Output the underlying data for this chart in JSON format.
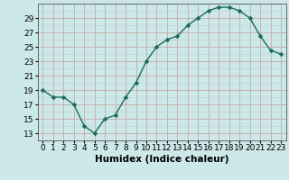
{
  "x": [
    0,
    1,
    2,
    3,
    4,
    5,
    6,
    7,
    8,
    9,
    10,
    11,
    12,
    13,
    14,
    15,
    16,
    17,
    18,
    19,
    20,
    21,
    22,
    23
  ],
  "y": [
    19,
    18,
    18,
    17,
    14,
    13,
    15,
    15.5,
    18,
    20,
    23,
    25,
    26,
    26.5,
    28,
    29,
    30,
    30.5,
    30.5,
    30,
    29,
    26.5,
    24.5,
    24
  ],
  "line_color": "#1a6b5a",
  "marker": "D",
  "marker_size": 2.5,
  "bg_color": "#cce8e8",
  "xlabel": "Humidex (Indice chaleur)",
  "xlim": [
    -0.5,
    23.5
  ],
  "ylim": [
    12,
    31
  ],
  "yticks": [
    13,
    15,
    17,
    19,
    21,
    23,
    25,
    27,
    29
  ],
  "xticks": [
    0,
    1,
    2,
    3,
    4,
    5,
    6,
    7,
    8,
    9,
    10,
    11,
    12,
    13,
    14,
    15,
    16,
    17,
    18,
    19,
    20,
    21,
    22,
    23
  ],
  "xtick_labels": [
    "0",
    "1",
    "2",
    "3",
    "4",
    "5",
    "6",
    "7",
    "8",
    "9",
    "10",
    "11",
    "12",
    "13",
    "14",
    "15",
    "16",
    "17",
    "18",
    "19",
    "20",
    "21",
    "22",
    "23"
  ],
  "grid_major_color": "#c8a8a8",
  "grid_minor_color": "#b8d8d8",
  "font_size_ticks": 6.5,
  "font_size_xlabel": 7.5
}
